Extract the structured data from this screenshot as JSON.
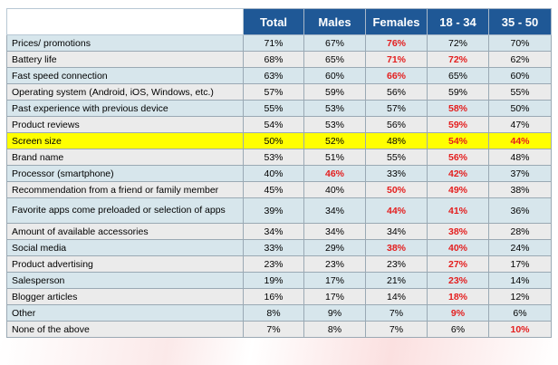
{
  "colors": {
    "header_bg": "#1f5896",
    "row_odd": "#d7e6ec",
    "row_even": "#ebebeb",
    "highlight": "#ffff00",
    "emphasis_text": "#e41e1e"
  },
  "chart_data": {
    "type": "table",
    "columns": [
      "Total",
      "Males",
      "Females",
      "18 - 34",
      "35 - 50"
    ],
    "unit": "%",
    "rows": [
      {
        "label": "Prices/ promotions",
        "values": [
          "71%",
          "67%",
          "76%",
          "72%",
          "70%"
        ],
        "emphasis": [
          false,
          false,
          true,
          false,
          false
        ],
        "highlight": false
      },
      {
        "label": "Battery life",
        "values": [
          "68%",
          "65%",
          "71%",
          "72%",
          "62%"
        ],
        "emphasis": [
          false,
          false,
          true,
          true,
          false
        ],
        "highlight": false
      },
      {
        "label": "Fast speed connection",
        "values": [
          "63%",
          "60%",
          "66%",
          "65%",
          "60%"
        ],
        "emphasis": [
          false,
          false,
          true,
          false,
          false
        ],
        "highlight": false
      },
      {
        "label": "Operating system (Android, iOS, Windows, etc.)",
        "values": [
          "57%",
          "59%",
          "56%",
          "59%",
          "55%"
        ],
        "emphasis": [
          false,
          false,
          false,
          false,
          false
        ],
        "highlight": false
      },
      {
        "label": "Past experience with previous device",
        "values": [
          "55%",
          "53%",
          "57%",
          "58%",
          "50%"
        ],
        "emphasis": [
          false,
          false,
          false,
          true,
          false
        ],
        "highlight": false
      },
      {
        "label": "Product reviews",
        "values": [
          "54%",
          "53%",
          "56%",
          "59%",
          "47%"
        ],
        "emphasis": [
          false,
          false,
          false,
          true,
          false
        ],
        "highlight": false
      },
      {
        "label": "Screen size",
        "values": [
          "50%",
          "52%",
          "48%",
          "54%",
          "44%"
        ],
        "emphasis": [
          false,
          false,
          false,
          true,
          true
        ],
        "highlight": true
      },
      {
        "label": "Brand name",
        "values": [
          "53%",
          "51%",
          "55%",
          "56%",
          "48%"
        ],
        "emphasis": [
          false,
          false,
          false,
          true,
          false
        ],
        "highlight": false
      },
      {
        "label": "Processor (smartphone)",
        "values": [
          "40%",
          "46%",
          "33%",
          "42%",
          "37%"
        ],
        "emphasis": [
          false,
          true,
          false,
          true,
          false
        ],
        "highlight": false
      },
      {
        "label": "Recommendation from a friend or family member",
        "values": [
          "45%",
          "40%",
          "50%",
          "49%",
          "38%"
        ],
        "emphasis": [
          false,
          false,
          true,
          true,
          false
        ],
        "highlight": false
      },
      {
        "label": "Favorite apps come preloaded or selection of apps",
        "values": [
          "39%",
          "34%",
          "44%",
          "41%",
          "36%"
        ],
        "emphasis": [
          false,
          false,
          true,
          true,
          false
        ],
        "highlight": false
      },
      {
        "label": "Amount of available accessories",
        "values": [
          "34%",
          "34%",
          "34%",
          "38%",
          "28%"
        ],
        "emphasis": [
          false,
          false,
          false,
          true,
          false
        ],
        "highlight": false
      },
      {
        "label": "Social media",
        "values": [
          "33%",
          "29%",
          "38%",
          "40%",
          "24%"
        ],
        "emphasis": [
          false,
          false,
          true,
          true,
          false
        ],
        "highlight": false
      },
      {
        "label": "Product advertising",
        "values": [
          "23%",
          "23%",
          "23%",
          "27%",
          "17%"
        ],
        "emphasis": [
          false,
          false,
          false,
          true,
          false
        ],
        "highlight": false
      },
      {
        "label": "Salesperson",
        "values": [
          "19%",
          "17%",
          "21%",
          "23%",
          "14%"
        ],
        "emphasis": [
          false,
          false,
          false,
          true,
          false
        ],
        "highlight": false
      },
      {
        "label": "Blogger articles",
        "values": [
          "16%",
          "17%",
          "14%",
          "18%",
          "12%"
        ],
        "emphasis": [
          false,
          false,
          false,
          true,
          false
        ],
        "highlight": false
      },
      {
        "label": "Other",
        "values": [
          "8%",
          "9%",
          "7%",
          "9%",
          "6%"
        ],
        "emphasis": [
          false,
          false,
          false,
          true,
          false
        ],
        "highlight": false
      },
      {
        "label": "None of the above",
        "values": [
          "7%",
          "8%",
          "7%",
          "6%",
          "10%"
        ],
        "emphasis": [
          false,
          false,
          false,
          false,
          true
        ],
        "highlight": false
      }
    ]
  }
}
